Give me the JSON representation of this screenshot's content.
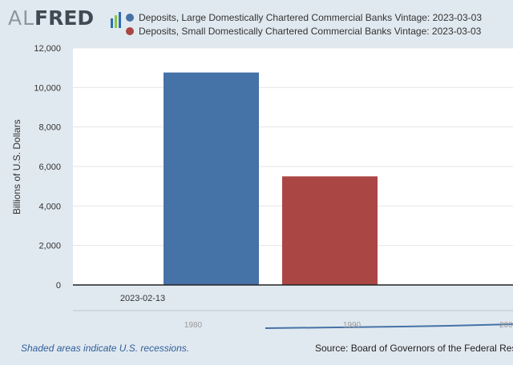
{
  "logo": {
    "part1": "AL",
    "part2": "FRED"
  },
  "note": "Shaded areas indicate U.S. recessions.",
  "source": "Source: Board of Governors of the Federal Rese",
  "colors": {
    "series1": "#4572a7",
    "series2": "#aa4643",
    "background": "#e1e9f0",
    "plot": "#ffffff",
    "navigator": "#4572a7"
  },
  "navigator": {
    "labels": [
      "1980",
      "1990",
      "200"
    ]
  },
  "chart_data": {
    "type": "bar",
    "categories": [
      "2023-02-13"
    ],
    "series": [
      {
        "name": "Deposits, Large Domestically Chartered Commercial Banks Vintage: 2023-03-03",
        "values": [
          10760
        ],
        "color": "#4572a7"
      },
      {
        "name": "Deposits, Small Domestically Chartered Commercial Banks Vintage: 2023-03-03",
        "values": [
          5500
        ],
        "color": "#aa4643"
      }
    ],
    "ylabel": "Billions of U.S. Dollars",
    "ylim": [
      0,
      12000
    ],
    "yticks": [
      "0",
      "2,000",
      "4,000",
      "6,000",
      "8,000",
      "10,000",
      "12,000"
    ],
    "grid": true,
    "legend_position": "top"
  }
}
